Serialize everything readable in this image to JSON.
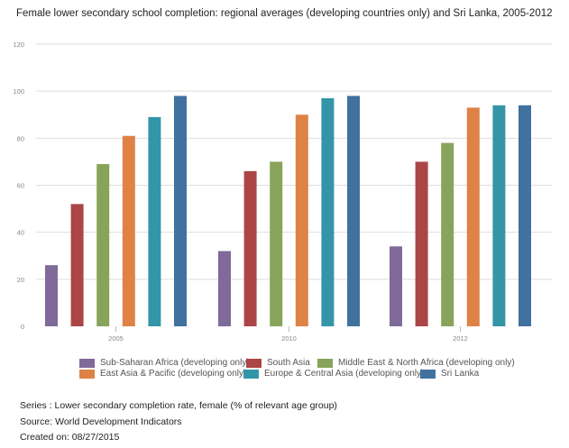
{
  "chart_data": {
    "type": "bar",
    "title": "Female lower secondary school completion: regional averages (developing countries only) and Sri Lanka, 2005-2012",
    "xlabel": "",
    "ylabel": "",
    "categories": [
      "2005",
      "2010",
      "2012"
    ],
    "ylim": [
      0,
      120
    ],
    "yticks": [
      0,
      20,
      40,
      60,
      80,
      100,
      120
    ],
    "grid": true,
    "legend_position": "bottom",
    "series": [
      {
        "name": "Sub-Saharan Africa (developing only)",
        "color": "#7f6a9a",
        "values": [
          26,
          32,
          34
        ]
      },
      {
        "name": "South Asia",
        "color": "#ab4546",
        "values": [
          52,
          66,
          70
        ]
      },
      {
        "name": "Middle East & North Africa (developing only)",
        "color": "#88a45a",
        "values": [
          69,
          70,
          78
        ]
      },
      {
        "name": "East Asia & Pacific (developing only)",
        "color": "#de8246",
        "values": [
          81,
          90,
          93
        ]
      },
      {
        "name": "Europe & Central Asia (developing only)",
        "color": "#3495a9",
        "values": [
          89,
          97,
          94
        ]
      },
      {
        "name": "Sri Lanka",
        "color": "#41719f",
        "values": [
          98,
          98,
          94
        ]
      }
    ]
  },
  "footer": {
    "series": "Series : Lower secondary completion rate, female (% of relevant age group)",
    "source": "Source: World Development Indicators",
    "created": "Created on: 08/27/2015"
  }
}
